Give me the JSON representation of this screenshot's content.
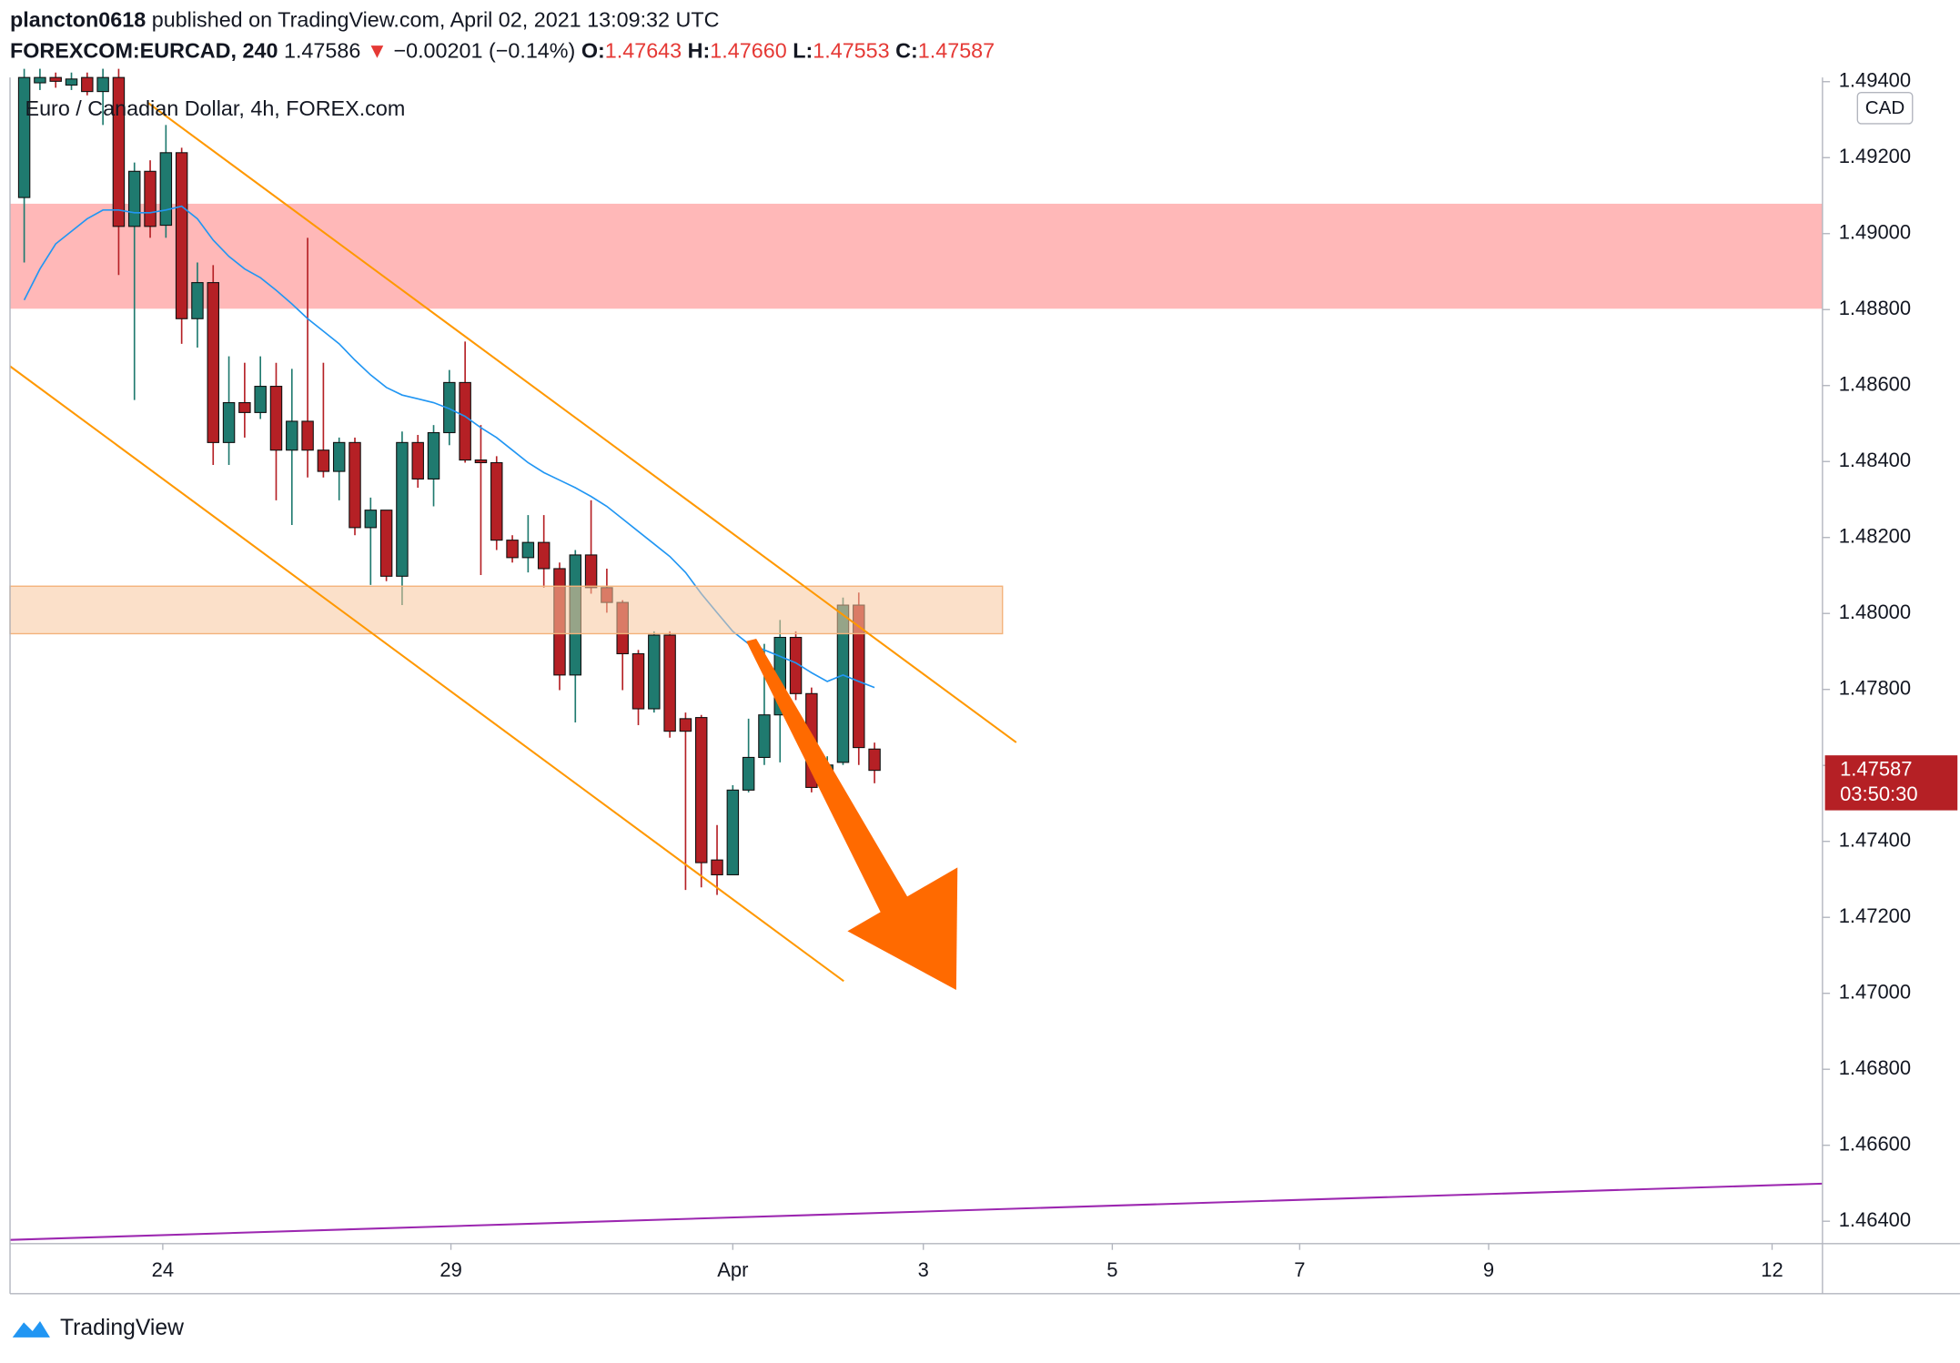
{
  "header": {
    "user": "plancton0618",
    "published": "published on TradingView.com, April 02, 2021 13:09:32 UTC",
    "symbol": "FOREXCOM:EURCAD, 240",
    "price": "1.47586",
    "direction": "▼",
    "change": "−0.00201 (−0.14%)",
    "open_label": "O:",
    "open": "1.47643",
    "high_label": "H:",
    "high": "1.47660",
    "low_label": "L:",
    "low": "1.47553",
    "close_label": "C:",
    "close": "1.47587"
  },
  "chart_data": {
    "type": "candlestick",
    "legend_title": "Euro / Canadian Dollar, 4h, FOREX.com",
    "currency": "CAD",
    "up_color": "#1f7a6f",
    "down_color": "#b52025",
    "border_color": "#111111",
    "candles": {
      "open": [
        1.49095,
        1.49397,
        1.49411,
        1.49391,
        1.49411,
        1.49374,
        1.49411,
        1.49019,
        1.49164,
        1.49022,
        1.49213,
        1.48776,
        1.48871,
        1.4845,
        1.48555,
        1.48529,
        1.48598,
        1.4843,
        1.48506,
        1.4843,
        1.48374,
        1.4845,
        1.48226,
        1.48272,
        1.48098,
        1.4845,
        1.48354,
        1.48476,
        1.48608,
        1.48404,
        1.48397,
        1.48193,
        1.48147,
        1.48187,
        1.48118,
        1.47838,
        1.48154,
        1.48068,
        1.48029,
        1.47894,
        1.47749,
        1.47943,
        1.47723,
        1.47726,
        1.47351,
        1.47312,
        1.47535,
        1.47621,
        1.47733,
        1.47937,
        1.47789,
        1.47542,
        1.47608,
        1.48022,
        1.47643
      ],
      "high": [
        1.49434,
        1.49434,
        1.49424,
        1.49424,
        1.49424,
        1.49434,
        1.49434,
        1.49187,
        1.49193,
        1.49286,
        1.49226,
        1.48924,
        1.48917,
        1.48677,
        1.4866,
        1.48677,
        1.4866,
        1.48644,
        1.48989,
        1.4866,
        1.48463,
        1.48463,
        1.48305,
        1.48272,
        1.48479,
        1.4847,
        1.48496,
        1.48641,
        1.48716,
        1.48496,
        1.48414,
        1.48206,
        1.48259,
        1.48259,
        1.48134,
        1.48167,
        1.48298,
        1.48118,
        1.48035,
        1.47904,
        1.47953,
        1.47953,
        1.47739,
        1.47733,
        1.47443,
        1.47548,
        1.47723,
        1.4792,
        1.47983,
        1.47953,
        1.47805,
        1.47624,
        1.48042,
        1.48055,
        1.4766
      ],
      "low": [
        1.48924,
        1.49378,
        1.49384,
        1.49378,
        1.49364,
        1.49286,
        1.48891,
        1.48562,
        1.48989,
        1.48989,
        1.4871,
        1.487,
        1.48391,
        1.48391,
        1.48463,
        1.48512,
        1.48298,
        1.48233,
        1.48358,
        1.48358,
        1.48298,
        1.48206,
        1.48075,
        1.48085,
        1.48022,
        1.48331,
        1.48282,
        1.48443,
        1.48397,
        1.48101,
        1.48167,
        1.48134,
        1.48108,
        1.48068,
        1.47798,
        1.47713,
        1.48052,
        1.48002,
        1.47798,
        1.47706,
        1.47739,
        1.47673,
        1.47272,
        1.47279,
        1.47259,
        1.47312,
        1.47529,
        1.47601,
        1.47608,
        1.47772,
        1.47529,
        1.47509,
        1.47601,
        1.47601,
        1.47553
      ],
      "close": [
        1.49411,
        1.49411,
        1.49401,
        1.49407,
        1.49374,
        1.49411,
        1.49019,
        1.49164,
        1.49019,
        1.49213,
        1.48776,
        1.48871,
        1.4845,
        1.48555,
        1.48529,
        1.48598,
        1.4843,
        1.48506,
        1.4843,
        1.48374,
        1.4845,
        1.48226,
        1.48272,
        1.48098,
        1.4845,
        1.48354,
        1.48476,
        1.48608,
        1.48404,
        1.48397,
        1.48193,
        1.48147,
        1.48187,
        1.48118,
        1.47838,
        1.48154,
        1.48068,
        1.48029,
        1.47894,
        1.47749,
        1.47943,
        1.4769,
        1.4769,
        1.47344,
        1.47312,
        1.47535,
        1.47621,
        1.47733,
        1.47937,
        1.47789,
        1.47542,
        1.47601,
        1.48022,
        1.47647,
        1.47587
      ]
    },
    "ma": {
      "color": "#2196f3",
      "values": [
        1.48825,
        1.48907,
        1.48973,
        1.49006,
        1.49039,
        1.49062,
        1.49062,
        1.49055,
        1.49055,
        1.49062,
        1.49072,
        1.49039,
        1.48983,
        1.4894,
        1.48907,
        1.48884,
        1.48851,
        1.48815,
        1.48776,
        1.48743,
        1.4871,
        1.48667,
        1.48628,
        1.48595,
        1.48575,
        1.48565,
        1.48555,
        1.48539,
        1.48519,
        1.48489,
        1.48463,
        1.4843,
        1.48397,
        1.48371,
        1.48351,
        1.48331,
        1.48308,
        1.48282,
        1.48249,
        1.48216,
        1.48183,
        1.4815,
        1.48108,
        1.48052,
        1.48002,
        1.47953,
        1.4792,
        1.47904,
        1.47887,
        1.4787,
        1.47844,
        1.47821,
        1.47838,
        1.47821,
        1.47805
      ]
    },
    "last_price_label": "1.47587",
    "countdown": "03:50:30",
    "xlim": [
      -0.9,
      114.2
    ],
    "xticks": [
      {
        "value": 8.8,
        "label": "24"
      },
      {
        "value": 27.1,
        "label": "29"
      },
      {
        "value": 45,
        "label": "Apr"
      },
      {
        "value": 57.1,
        "label": "3"
      },
      {
        "value": 69.1,
        "label": "5"
      },
      {
        "value": 81,
        "label": "7"
      },
      {
        "value": 93,
        "label": "9"
      },
      {
        "value": 111,
        "label": "12"
      }
    ],
    "ylim": [
      1.46341,
      1.49411
    ],
    "yticks": [
      {
        "value": 1.494,
        "label": "1.49400"
      },
      {
        "value": 1.492,
        "label": "1.49200"
      },
      {
        "value": 1.49,
        "label": "1.49000"
      },
      {
        "value": 1.488,
        "label": "1.48800"
      },
      {
        "value": 1.486,
        "label": "1.48600"
      },
      {
        "value": 1.484,
        "label": "1.48400"
      },
      {
        "value": 1.482,
        "label": "1.48200"
      },
      {
        "value": 1.48,
        "label": "1.48000"
      },
      {
        "value": 1.478,
        "label": "1.47800"
      },
      {
        "value": 1.476,
        "label": "1.47600"
      },
      {
        "value": 1.474,
        "label": "1.47400"
      },
      {
        "value": 1.472,
        "label": "1.47200"
      },
      {
        "value": 1.47,
        "label": "1.47000"
      },
      {
        "value": 1.468,
        "label": "1.46800"
      },
      {
        "value": 1.466,
        "label": "1.46600"
      },
      {
        "value": 1.464,
        "label": "1.46400"
      }
    ]
  },
  "footer": {
    "brand": "TradingView"
  }
}
